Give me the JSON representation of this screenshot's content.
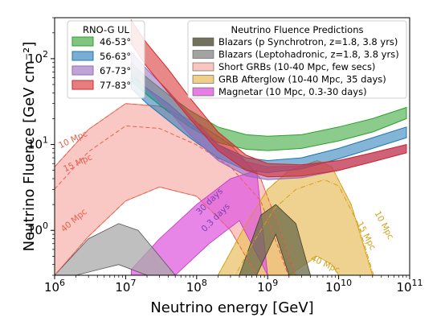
{
  "chart_data": {
    "type": "area",
    "xlabel": "Neutrino energy [GeV]",
    "ylabel": "Neutrino Fluence [GeV cm⁻²]",
    "xscale": "log",
    "yscale": "log",
    "xlim": [
      1000000,
      100000000000
    ],
    "ylim": [
      0.3,
      300
    ],
    "x_ticks": [
      {
        "value": 1000000,
        "base": "10",
        "exp": "6"
      },
      {
        "value": 10000000,
        "base": "10",
        "exp": "7"
      },
      {
        "value": 100000000,
        "base": "10",
        "exp": "8"
      },
      {
        "value": 1000000000,
        "base": "10",
        "exp": "9"
      },
      {
        "value": 10000000000,
        "base": "10",
        "exp": "10"
      },
      {
        "value": 100000000000,
        "base": "10",
        "exp": "11"
      }
    ],
    "y_ticks": [
      {
        "value": 1,
        "base": "10",
        "exp": "0"
      },
      {
        "value": 10,
        "base": "10",
        "exp": "1"
      },
      {
        "value": 100,
        "base": "10",
        "exp": "2"
      }
    ],
    "legend_ul": {
      "title": "RNO-G UL",
      "placement": "upper-left",
      "entries": [
        {
          "label": "46-53°",
          "color": "#2ca02c"
        },
        {
          "label": "56-63°",
          "color": "#1f77b4"
        },
        {
          "label": "67-73°",
          "color": "#9467bd"
        },
        {
          "label": "77-83°",
          "color": "#d62728"
        }
      ]
    },
    "legend_models": {
      "title": "Neutrino Fluence Predictions",
      "placement": "upper-right",
      "entries": [
        {
          "label": "Blazars (p Synchrotron, z=1.8, 3.8 yrs)",
          "color": "#4d4d33"
        },
        {
          "label": "Blazars (Leptohadronic, z=1.8, 3.8 yrs)",
          "color": "#8c8c8c"
        },
        {
          "label": "Short GRBs (10-40 Mpc, few secs)",
          "color": "#f7b6b0"
        },
        {
          "label": "GRB Afterglow (10-40 Mpc, 35 days)",
          "color": "#ebc36b"
        },
        {
          "label": "Magnetar (10 Mpc, 0.3-30 days)",
          "color": "#e05ee0"
        }
      ]
    },
    "ul_series": [
      {
        "name": "46-53°",
        "color": "#2ca02c",
        "upper": [
          [
            12000000,
            90
          ],
          [
            20000000,
            60
          ],
          [
            40000000,
            38
          ],
          [
            80000000,
            25
          ],
          [
            200000000,
            16
          ],
          [
            500000000,
            13
          ],
          [
            1000000000,
            12.5
          ],
          [
            3000000000,
            13
          ],
          [
            10000000000,
            16
          ],
          [
            30000000000,
            20
          ],
          [
            90000000000,
            27
          ]
        ],
        "lower": [
          [
            12000000,
            55
          ],
          [
            20000000,
            38
          ],
          [
            40000000,
            24
          ],
          [
            80000000,
            16
          ],
          [
            200000000,
            10.5
          ],
          [
            500000000,
            8.8
          ],
          [
            1000000000,
            8.5
          ],
          [
            3000000000,
            9
          ],
          [
            10000000000,
            11
          ],
          [
            30000000000,
            14
          ],
          [
            90000000000,
            20
          ]
        ]
      },
      {
        "name": "56-63°",
        "color": "#1f77b4",
        "upper": [
          [
            12000000,
            65
          ],
          [
            20000000,
            45
          ],
          [
            40000000,
            30
          ],
          [
            80000000,
            18
          ],
          [
            200000000,
            10
          ],
          [
            500000000,
            7
          ],
          [
            1000000000,
            6.5
          ],
          [
            3000000000,
            7
          ],
          [
            10000000000,
            9
          ],
          [
            30000000000,
            12
          ],
          [
            90000000000,
            16
          ]
        ],
        "lower": [
          [
            12000000,
            45
          ],
          [
            20000000,
            30
          ],
          [
            40000000,
            19
          ],
          [
            80000000,
            12
          ],
          [
            200000000,
            7
          ],
          [
            500000000,
            5
          ],
          [
            1000000000,
            4.7
          ],
          [
            3000000000,
            5.2
          ],
          [
            10000000000,
            6.8
          ],
          [
            30000000000,
            9
          ],
          [
            90000000000,
            12
          ]
        ]
      },
      {
        "name": "67-73°",
        "color": "#9467bd",
        "upper": [
          [
            12000000,
            120
          ],
          [
            20000000,
            75
          ],
          [
            40000000,
            42
          ],
          [
            80000000,
            22
          ],
          [
            200000000,
            10
          ],
          [
            500000000,
            6.3
          ],
          [
            1000000000,
            5.5
          ],
          [
            3000000000,
            5.6
          ],
          [
            10000000000,
            6.5
          ],
          [
            30000000000,
            8
          ],
          [
            90000000000,
            10
          ]
        ],
        "lower": [
          [
            12000000,
            70
          ],
          [
            20000000,
            44
          ],
          [
            40000000,
            25
          ],
          [
            80000000,
            13
          ],
          [
            200000000,
            6.5
          ],
          [
            500000000,
            4.3
          ],
          [
            1000000000,
            3.9
          ],
          [
            3000000000,
            4.1
          ],
          [
            10000000000,
            5
          ],
          [
            30000000000,
            6.3
          ],
          [
            90000000000,
            8
          ]
        ]
      },
      {
        "name": "77-83°",
        "color": "#d62728",
        "upper": [
          [
            12000000,
            280
          ],
          [
            20000000,
            150
          ],
          [
            40000000,
            75
          ],
          [
            80000000,
            35
          ],
          [
            200000000,
            14
          ],
          [
            500000000,
            7.5
          ],
          [
            1000000000,
            6
          ],
          [
            3000000000,
            5.8
          ],
          [
            10000000000,
            6.5
          ],
          [
            30000000000,
            8
          ],
          [
            90000000000,
            10
          ]
        ],
        "lower": [
          [
            12000000,
            150
          ],
          [
            20000000,
            80
          ],
          [
            40000000,
            40
          ],
          [
            80000000,
            20
          ],
          [
            200000000,
            8.5
          ],
          [
            500000000,
            5
          ],
          [
            1000000000,
            4.2
          ],
          [
            3000000000,
            4.3
          ],
          [
            10000000000,
            5
          ],
          [
            30000000000,
            6.3
          ],
          [
            90000000000,
            8
          ]
        ]
      }
    ],
    "model_series": [
      {
        "name": "Short GRBs (10-40 Mpc, few secs)",
        "color": "#f7b6b0",
        "edge": "#e8604c",
        "upper": [
          [
            1000000,
            5.5
          ],
          [
            3000000,
            15
          ],
          [
            10000000,
            30
          ],
          [
            30000000,
            28
          ],
          [
            100000000,
            18
          ],
          [
            300000000,
            10
          ],
          [
            800000000,
            4
          ],
          [
            1500000000,
            1
          ],
          [
            2500000000,
            0.3
          ]
        ],
        "lower": [
          [
            1000000,
            0.3
          ],
          [
            3000000,
            0.85
          ],
          [
            10000000,
            2.2
          ],
          [
            30000000,
            3.2
          ],
          [
            100000000,
            2.5
          ],
          [
            300000000,
            1
          ],
          [
            700000000,
            0.3
          ]
        ]
      },
      {
        "name": "GRB Afterglow (10-40 Mpc, 35 days)",
        "color": "#ebc36b",
        "edge": "#d4a017",
        "upper": [
          [
            200000000,
            0.3
          ],
          [
            500000000,
            1.2
          ],
          [
            1000000000,
            3
          ],
          [
            2000000000,
            5
          ],
          [
            5000000000,
            6.5
          ],
          [
            8000000000,
            5.5
          ],
          [
            15000000000,
            2
          ],
          [
            30000000000,
            0.3
          ]
        ],
        "lower": [
          [
            2000000000,
            0.3
          ],
          [
            5000000000,
            0.5
          ],
          [
            8000000000,
            0.4
          ],
          [
            10000000000,
            0.3
          ]
        ]
      },
      {
        "name": "Magnetar (10 Mpc, 0.3-30 days)",
        "color": "#e05ee0",
        "edge": "#c033c0",
        "upper": [
          [
            12000000,
            0.35
          ],
          [
            30000000,
            0.8
          ],
          [
            100000000,
            2
          ],
          [
            300000000,
            4
          ],
          [
            700000000,
            5
          ]
        ],
        "lower": [
          [
            12000000,
            0.3
          ],
          [
            50000000,
            0.3
          ],
          [
            150000000,
            0.7
          ],
          [
            400000000,
            1.3
          ],
          [
            1000000000,
            0.3
          ]
        ]
      },
      {
        "name": "Blazars (Leptohadronic, z=1.8, 3.8 yrs)",
        "color": "#aaaaaa",
        "edge": "#555555",
        "upper": [
          [
            1000000,
            0.3
          ],
          [
            3000000,
            0.8
          ],
          [
            8000000,
            1.2
          ],
          [
            15000000,
            1
          ],
          [
            30000000,
            0.5
          ],
          [
            50000000,
            0.3
          ]
        ],
        "lower": [
          [
            2000000,
            0.3
          ],
          [
            8000000,
            0.4
          ],
          [
            20000000,
            0.3
          ]
        ]
      },
      {
        "name": "Blazars (p Synchrotron, z=1.8, 3.8 yrs)",
        "color": "#6b6b4a",
        "edge": "#3d3d29",
        "upper": [
          [
            400000000,
            0.3
          ],
          [
            800000000,
            1.5
          ],
          [
            1300000000,
            2
          ],
          [
            2500000000,
            1.2
          ],
          [
            4000000000,
            0.3
          ]
        ],
        "lower": [
          [
            700000000,
            0.3
          ],
          [
            1300000000,
            0.9
          ],
          [
            2000000000,
            0.3
          ]
        ]
      }
    ],
    "annotations": [
      {
        "text": "10 Mpc",
        "color": "#e8604c"
      },
      {
        "text": "15 Mpc",
        "color": "#e8604c"
      },
      {
        "text": "40 Mpc",
        "color": "#e8604c"
      },
      {
        "text": "30 days",
        "color": "#7a3fb0"
      },
      {
        "text": "0.3 days",
        "color": "#7a3fb0"
      },
      {
        "text": "10 Mpc",
        "color": "#d4a017"
      },
      {
        "text": "15 Mpc",
        "color": "#d4a017"
      },
      {
        "text": "40 Mpc",
        "color": "#d4a017"
      }
    ]
  }
}
